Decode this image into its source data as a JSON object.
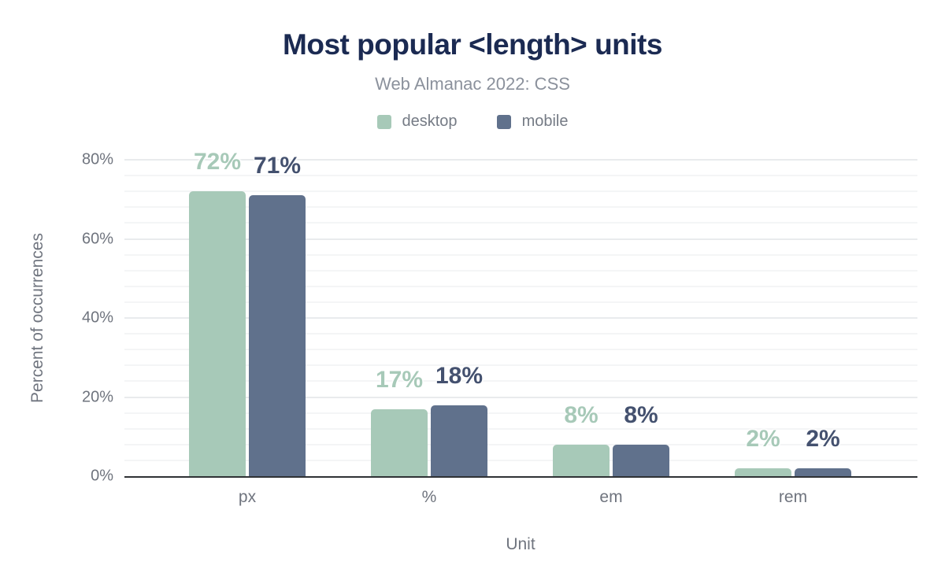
{
  "chart_data": {
    "type": "bar",
    "title": "Most popular <length> units",
    "subtitle": "Web Almanac 2022: CSS",
    "categories": [
      "px",
      "%",
      "em",
      "rem"
    ],
    "series": [
      {
        "name": "desktop",
        "color": "#a7c9b8",
        "label_color": "#a7c9b8",
        "values": [
          72,
          17,
          8,
          2
        ]
      },
      {
        "name": "mobile",
        "color": "#60718c",
        "label_color": "#44516f",
        "values": [
          71,
          18,
          8,
          2
        ]
      }
    ],
    "data_labels": [
      [
        "72%",
        "17%",
        "8%",
        "2%"
      ],
      [
        "71%",
        "18%",
        "8%",
        "2%"
      ]
    ],
    "xlabel": "Unit",
    "ylabel": "Percent of occurrences",
    "ylim": [
      0,
      80
    ],
    "yticks": [
      0,
      20,
      40,
      60,
      80
    ],
    "ytick_labels": [
      "0%",
      "20%",
      "40%",
      "60%",
      "80%"
    ],
    "minor_grid_step": 4,
    "major_grid_step": 20,
    "grid": true,
    "legend_position": "top"
  },
  "palette": {
    "title_color": "#1b2a52",
    "subtitle_color": "#8b919c",
    "axis_text_color": "#6f747e",
    "axis_line_color": "#2f3235",
    "minor_grid_color": "#f4f5f6",
    "major_grid_color": "#e9ebed",
    "background": "#ffffff"
  }
}
